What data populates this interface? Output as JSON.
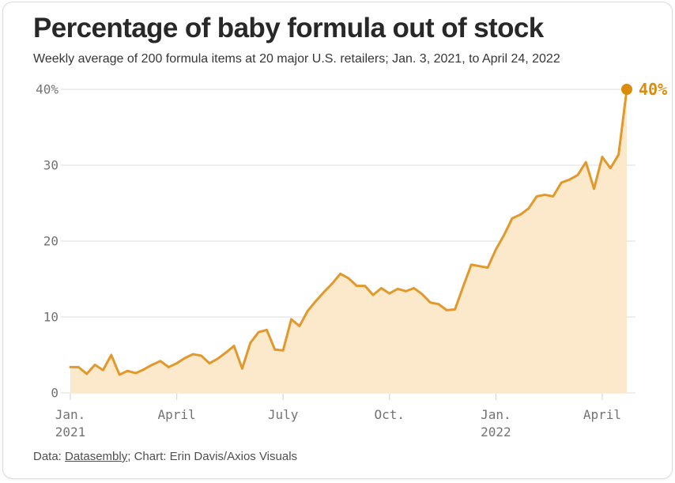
{
  "header": {
    "title": "Percentage of baby formula out of stock",
    "subtitle": "Weekly average of 200 formula items at 20 major U.S. retailers; Jan. 3, 2021, to April 24, 2022"
  },
  "chart_data": {
    "type": "area",
    "title": "Percentage of baby formula out of stock",
    "subtitle": "Weekly average of 200 formula items at 20 major U.S. retailers; Jan. 3, 2021, to April 24, 2022",
    "unit": "%",
    "frequency": "weekly",
    "x_start": "Jan. 3, 2021",
    "x_end": "April 24, 2022",
    "values": [
      3.4,
      3.4,
      2.5,
      3.7,
      3.0,
      5.0,
      2.4,
      2.9,
      2.6,
      3.1,
      3.7,
      4.2,
      3.4,
      3.9,
      4.6,
      5.1,
      4.9,
      3.9,
      4.5,
      5.3,
      6.2,
      3.2,
      6.6,
      8.0,
      8.3,
      5.7,
      5.6,
      9.7,
      8.8,
      10.8,
      12.1,
      13.3,
      14.4,
      15.7,
      15.1,
      14.1,
      14.1,
      12.9,
      13.8,
      13.1,
      13.7,
      13.4,
      13.8,
      13.0,
      11.9,
      11.7,
      10.9,
      11.0,
      14.0,
      16.9,
      16.7,
      16.5,
      18.9,
      20.8,
      23.0,
      23.5,
      24.3,
      25.9,
      26.1,
      25.9,
      27.7,
      28.1,
      28.7,
      30.4,
      26.9,
      31.1,
      29.6,
      31.4,
      40.0
    ],
    "x_axis": {
      "ticks": [
        {
          "week": 1,
          "lines": [
            "Jan.",
            "2021"
          ]
        },
        {
          "week": 14,
          "lines": [
            "April"
          ]
        },
        {
          "week": 27,
          "lines": [
            "July"
          ]
        },
        {
          "week": 40,
          "lines": [
            "Oct."
          ]
        },
        {
          "week": 53,
          "lines": [
            "Jan.",
            "2022"
          ]
        },
        {
          "week": 66,
          "lines": [
            "April"
          ]
        }
      ]
    },
    "y_axis": {
      "ticks": [
        {
          "value": 0,
          "label": "0"
        },
        {
          "value": 10,
          "label": "10"
        },
        {
          "value": 20,
          "label": "20"
        },
        {
          "value": 30,
          "label": "30"
        },
        {
          "value": 40,
          "label": "40%"
        }
      ],
      "ylim": [
        0,
        40
      ]
    },
    "grid": "horizontal",
    "legend": "none",
    "end_label": "40%",
    "end_value": 40,
    "colors": {
      "line": "#E2982A",
      "fill": "#FCE8CB",
      "accent": "#DB8C0A",
      "grid": "#E4E4E4",
      "tick_text": "#737373"
    }
  },
  "footer": {
    "prefix": "Data: ",
    "source_link": "Datasembly",
    "rest": "; Chart: Erin Davis/Axios Visuals"
  }
}
